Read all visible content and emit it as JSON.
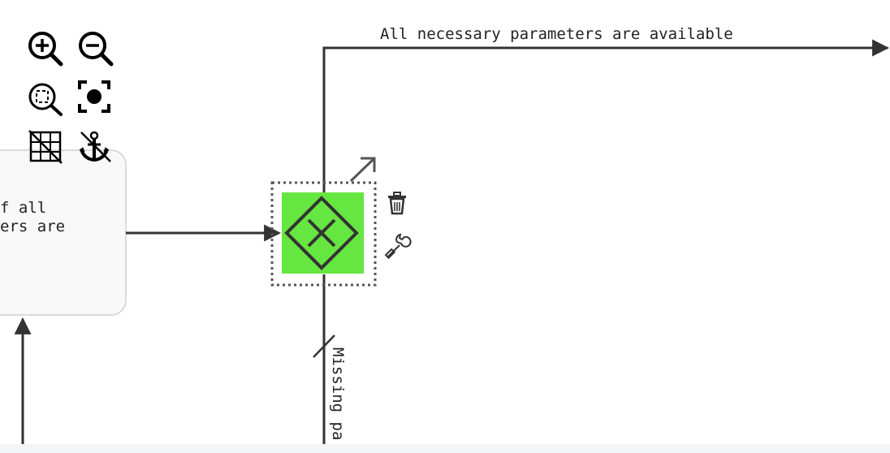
{
  "toolbar": {
    "zoom_in": "zoom-in-icon",
    "zoom_out": "zoom-out-icon",
    "zoom_fit": "zoom-to-fit-icon",
    "center": "center-focus-icon",
    "grid": "grid-toggle-icon",
    "anchor": "anchor-icon"
  },
  "diagram": {
    "task": {
      "label_line1": "f all",
      "label_line2": "ers are"
    },
    "gateway": {
      "type": "exclusive",
      "fill_color": "#66e640"
    },
    "flows": {
      "top_label": "All necessary parameters are available",
      "bottom_label": "Missing pa"
    },
    "context_menu": {
      "connect": "connect-arrow-icon",
      "delete": "trash-icon",
      "edit": "wrench-icon"
    }
  },
  "colors": {
    "stroke": "#333333",
    "gateway_fill": "#66e640",
    "task_fill": "#f8f8f8",
    "task_border": "#cfcfcf",
    "footer_bar": "#f3f5f7"
  }
}
